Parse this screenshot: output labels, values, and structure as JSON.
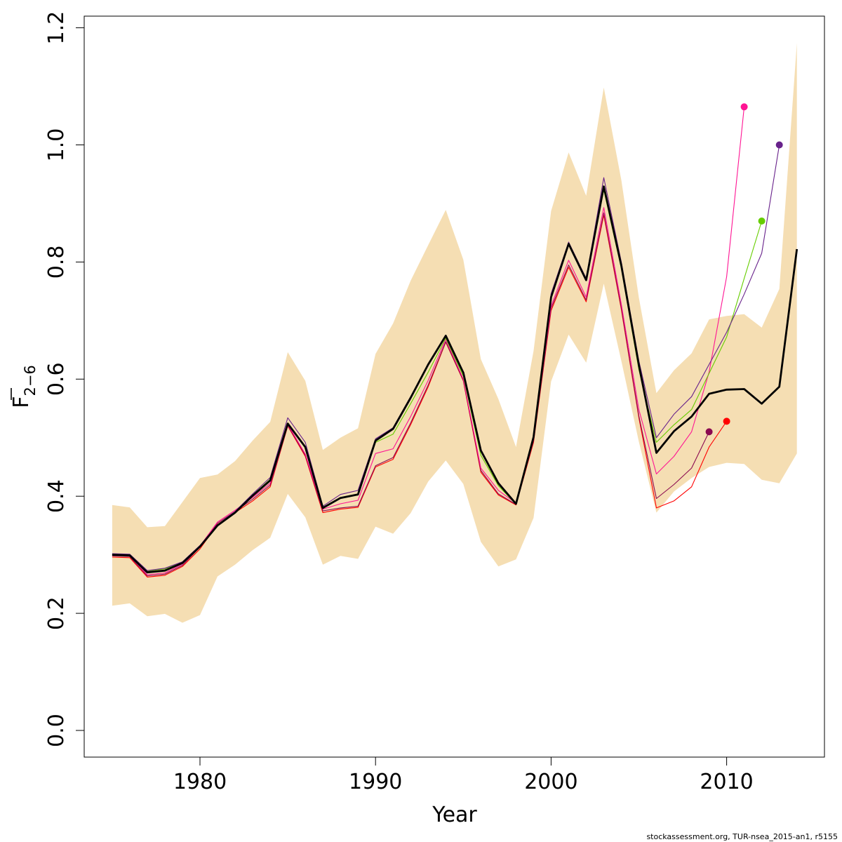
{
  "chart_data": {
    "type": "line",
    "xlabel": "Year",
    "ylabel": "F",
    "ylabel_subscript": "2−6",
    "xlim": [
      1973.5,
      1975.5
    ],
    "ylim": [
      -0.05,
      1.23
    ],
    "xticks": [
      1980,
      1990,
      2000,
      2010
    ],
    "xtick_labels": [
      "1980",
      "1990",
      "2000",
      "2010"
    ],
    "yticks": [
      0.0,
      0.2,
      0.4,
      0.6,
      0.8,
      1.0,
      1.2
    ],
    "ytick_labels": [
      "0.0",
      "0.2",
      "0.4",
      "0.6",
      "0.8",
      "1.0",
      "1.2"
    ],
    "grid": false,
    "legend": "none",
    "band": {
      "color": "#f5deb3",
      "x": [
        1975,
        1976,
        1977,
        1978,
        1979,
        1980,
        1981,
        1982,
        1983,
        1984,
        1985,
        1986,
        1987,
        1988,
        1989,
        1990,
        1991,
        1992,
        1993,
        1994,
        1995,
        1996,
        1997,
        1998,
        1999,
        2000,
        2001,
        2002,
        2003,
        2004,
        2005,
        2006,
        2007,
        2008,
        2009,
        2010,
        2011,
        2012,
        2013,
        2014
      ],
      "upper": [
        0.385,
        0.381,
        0.347,
        0.349,
        0.39,
        0.431,
        0.437,
        0.46,
        0.495,
        0.527,
        0.646,
        0.597,
        0.479,
        0.5,
        0.516,
        0.643,
        0.695,
        0.768,
        0.829,
        0.889,
        0.804,
        0.634,
        0.566,
        0.484,
        0.648,
        0.887,
        0.987,
        0.913,
        1.098,
        0.94,
        0.739,
        0.576,
        0.615,
        0.644,
        0.702,
        0.708,
        0.711,
        0.688,
        0.754,
        1.174
      ],
      "lower": [
        0.213,
        0.217,
        0.195,
        0.199,
        0.184,
        0.197,
        0.263,
        0.283,
        0.308,
        0.329,
        0.404,
        0.364,
        0.283,
        0.298,
        0.293,
        0.348,
        0.336,
        0.371,
        0.425,
        0.461,
        0.421,
        0.322,
        0.28,
        0.292,
        0.363,
        0.596,
        0.676,
        0.628,
        0.763,
        0.631,
        0.493,
        0.372,
        0.408,
        0.431,
        0.45,
        0.457,
        0.455,
        0.428,
        0.422,
        0.473
      ]
    },
    "series": [
      {
        "color": "#ff0000",
        "x": [
          1975,
          1976,
          1977,
          1978,
          1979,
          1980,
          1981,
          1982,
          1983,
          1984,
          1985,
          1986,
          1987,
          1988,
          1989,
          1990,
          1991,
          1992,
          1993,
          1994,
          1995,
          1996,
          1997,
          1998,
          1999,
          2000,
          2001,
          2002,
          2003,
          2004,
          2005,
          2006,
          2007,
          2008,
          2009,
          2010
        ],
        "values": [
          0.296,
          0.295,
          0.262,
          0.265,
          0.28,
          0.31,
          0.352,
          0.372,
          0.392,
          0.416,
          0.52,
          0.468,
          0.372,
          0.378,
          0.381,
          0.45,
          0.463,
          0.522,
          0.587,
          0.663,
          0.597,
          0.441,
          0.402,
          0.385,
          0.492,
          0.717,
          0.791,
          0.732,
          0.88,
          0.719,
          0.534,
          0.38,
          0.392,
          0.416,
          0.484,
          0.528
        ],
        "end_marker": true
      },
      {
        "color": "#8b0a50",
        "x": [
          1975,
          1976,
          1977,
          1978,
          1979,
          1980,
          1981,
          1982,
          1983,
          1984,
          1985,
          1986,
          1987,
          1988,
          1989,
          1990,
          1991,
          1992,
          1993,
          1994,
          1995,
          1996,
          1997,
          1998,
          1999,
          2000,
          2001,
          2002,
          2003,
          2004,
          2005,
          2006,
          2007,
          2008,
          2009
        ],
        "values": [
          0.298,
          0.297,
          0.264,
          0.267,
          0.282,
          0.313,
          0.354,
          0.374,
          0.395,
          0.419,
          0.521,
          0.47,
          0.375,
          0.38,
          0.383,
          0.452,
          0.466,
          0.525,
          0.59,
          0.664,
          0.598,
          0.444,
          0.404,
          0.386,
          0.495,
          0.721,
          0.795,
          0.735,
          0.884,
          0.722,
          0.537,
          0.396,
          0.42,
          0.448,
          0.51
        ],
        "end_marker": true
      },
      {
        "color": "#ff1493",
        "x": [
          1975,
          1976,
          1977,
          1978,
          1979,
          1980,
          1981,
          1982,
          1983,
          1984,
          1985,
          1986,
          1987,
          1988,
          1989,
          1990,
          1991,
          1992,
          1993,
          1994,
          1995,
          1996,
          1997,
          1998,
          1999,
          2000,
          2001,
          2002,
          2003,
          2004,
          2005,
          2006,
          2007,
          2008,
          2009,
          2010,
          2011
        ],
        "values": [
          0.3,
          0.299,
          0.266,
          0.269,
          0.284,
          0.315,
          0.356,
          0.376,
          0.398,
          0.422,
          0.523,
          0.472,
          0.378,
          0.387,
          0.393,
          0.473,
          0.481,
          0.536,
          0.598,
          0.668,
          0.6,
          0.448,
          0.41,
          0.388,
          0.499,
          0.725,
          0.803,
          0.74,
          0.893,
          0.728,
          0.548,
          0.438,
          0.468,
          0.51,
          0.612,
          0.775,
          1.065
        ],
        "end_marker": true
      },
      {
        "color": "#66cd00",
        "x": [
          1975,
          1976,
          1977,
          1978,
          1979,
          1980,
          1981,
          1982,
          1983,
          1984,
          1985,
          1986,
          1987,
          1988,
          1989,
          1990,
          1991,
          1992,
          1993,
          1994,
          1995,
          1996,
          1997,
          1998,
          1999,
          2000,
          2001,
          2002,
          2003,
          2004,
          2005,
          2006,
          2007,
          2008,
          2009,
          2010,
          2011,
          2012
        ],
        "values": [
          0.301,
          0.3,
          0.272,
          0.276,
          0.287,
          0.315,
          0.35,
          0.372,
          0.402,
          0.429,
          0.524,
          0.485,
          0.379,
          0.398,
          0.404,
          0.492,
          0.506,
          0.558,
          0.612,
          0.67,
          0.605,
          0.47,
          0.418,
          0.386,
          0.502,
          0.741,
          0.829,
          0.769,
          0.923,
          0.789,
          0.616,
          0.492,
          0.522,
          0.548,
          0.61,
          0.672,
          0.772,
          0.87
        ],
        "end_marker": true
      },
      {
        "color": "#68228b",
        "x": [
          1975,
          1976,
          1977,
          1978,
          1979,
          1980,
          1981,
          1982,
          1983,
          1984,
          1985,
          1986,
          1987,
          1988,
          1989,
          1990,
          1991,
          1992,
          1993,
          1994,
          1995,
          1996,
          1997,
          1998,
          1999,
          2000,
          2001,
          2002,
          2003,
          2004,
          2005,
          2006,
          2007,
          2008,
          2009,
          2010,
          2011,
          2012,
          2013
        ],
        "values": [
          0.302,
          0.301,
          0.273,
          0.277,
          0.288,
          0.316,
          0.351,
          0.374,
          0.404,
          0.432,
          0.534,
          0.492,
          0.383,
          0.403,
          0.41,
          0.498,
          0.517,
          0.57,
          0.624,
          0.674,
          0.612,
          0.48,
          0.424,
          0.388,
          0.503,
          0.746,
          0.834,
          0.772,
          0.944,
          0.8,
          0.631,
          0.5,
          0.54,
          0.57,
          0.625,
          0.68,
          0.745,
          0.815,
          1.0
        ],
        "end_marker": true
      },
      {
        "color": "#000000",
        "bold": true,
        "x": [
          1975,
          1976,
          1977,
          1978,
          1979,
          1980,
          1981,
          1982,
          1983,
          1984,
          1985,
          1986,
          1987,
          1988,
          1989,
          1990,
          1991,
          1992,
          1993,
          1994,
          1995,
          1996,
          1997,
          1998,
          1999,
          2000,
          2001,
          2002,
          2003,
          2004,
          2005,
          2006,
          2007,
          2008,
          2009,
          2010,
          2011,
          2012,
          2013,
          2014
        ],
        "values": [
          0.3,
          0.299,
          0.27,
          0.273,
          0.286,
          0.314,
          0.35,
          0.372,
          0.401,
          0.427,
          0.524,
          0.484,
          0.38,
          0.397,
          0.403,
          0.495,
          0.515,
          0.568,
          0.625,
          0.674,
          0.611,
          0.478,
          0.422,
          0.387,
          0.501,
          0.74,
          0.831,
          0.769,
          0.929,
          0.794,
          0.624,
          0.474,
          0.511,
          0.536,
          0.575,
          0.582,
          0.583,
          0.558,
          0.587,
          0.822
        ]
      }
    ]
  },
  "footer": {
    "credit": "stockassessment.org, TUR-nsea_2015-an1, r5155"
  }
}
